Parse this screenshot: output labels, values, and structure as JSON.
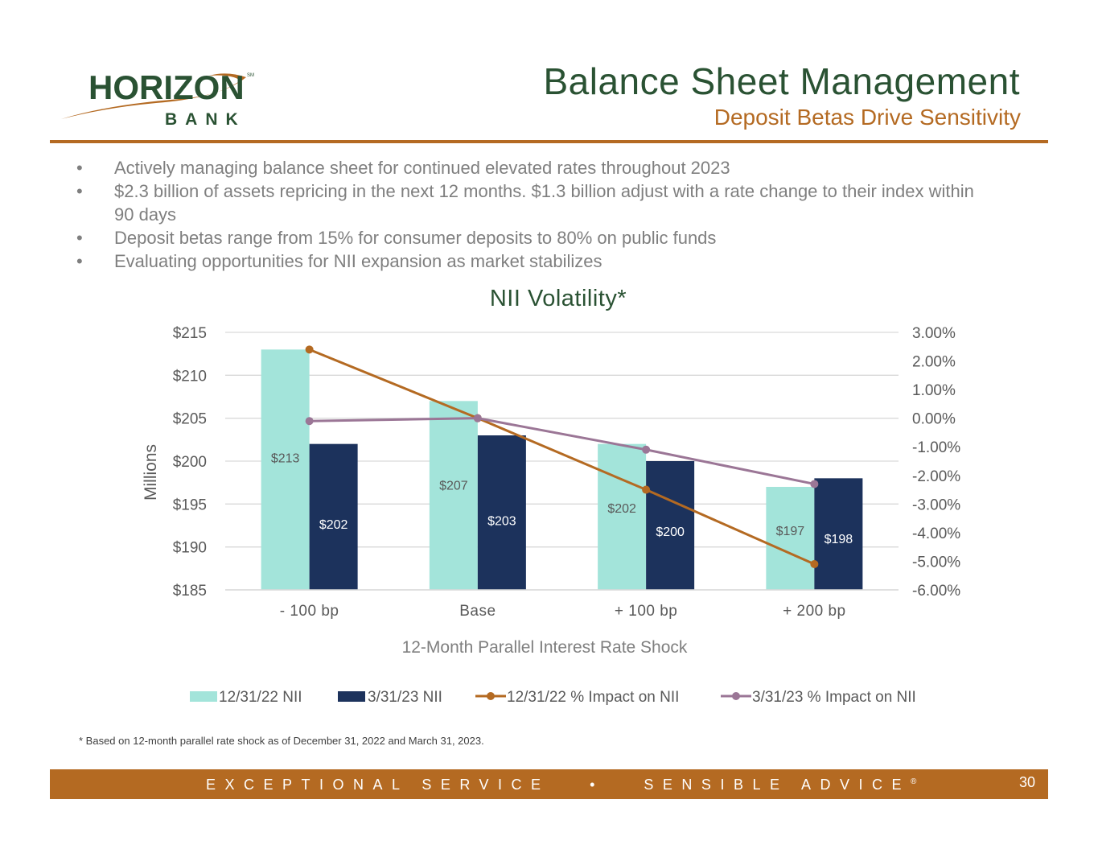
{
  "logo": {
    "name": "HORIZON",
    "sub": "BANK",
    "mark": "SM"
  },
  "header": {
    "title": "Balance Sheet Management",
    "subtitle": "Deposit Betas Drive Sensitivity"
  },
  "bullets": [
    "Actively managing balance sheet for continued elevated rates throughout 2023",
    "$2.3 billion of assets repricing in the next 12 months. $1.3 billion adjust with a rate change to their index within 90 days",
    "Deposit betas range from 15% for consumer deposits to 80% on public funds",
    "Evaluating opportunities for NII expansion as market stabilizes"
  ],
  "bullet_symbol": "•",
  "chart_data": {
    "type": "bar",
    "title": "NII Volatility*",
    "xlabel": "12-Month Parallel Interest Rate Shock",
    "ylabel": "Millions",
    "categories": [
      "- 100 bp",
      "Base",
      "+ 100 bp",
      "+ 200 bp"
    ],
    "ylim": [
      185,
      215
    ],
    "yticks": [
      185,
      190,
      195,
      200,
      205,
      210,
      215
    ],
    "ytick_labels": [
      "$185",
      "$190",
      "$195",
      "$200",
      "$205",
      "$210",
      "$215"
    ],
    "y2lim": [
      -6,
      3
    ],
    "y2ticks": [
      -6,
      -5,
      -4,
      -3,
      -2,
      -1,
      0,
      1,
      2,
      3
    ],
    "y2tick_labels": [
      "-6.00%",
      "-5.00%",
      "-4.00%",
      "-3.00%",
      "-2.00%",
      "-1.00%",
      "0.00%",
      "1.00%",
      "2.00%",
      "3.00%"
    ],
    "grid": true,
    "legend_position": "bottom",
    "series": [
      {
        "name": "12/31/22 NII",
        "kind": "bar",
        "axis": "left",
        "color": "#a3e4da",
        "label_color": "#595959",
        "values": [
          213,
          207,
          202,
          197
        ],
        "labels": [
          "$213",
          "$207",
          "$202",
          "$197"
        ]
      },
      {
        "name": "3/31/23 NII",
        "kind": "bar",
        "axis": "left",
        "color": "#1c325c",
        "label_color": "#ffffff",
        "values": [
          202,
          203,
          200,
          198
        ],
        "labels": [
          "$202",
          "$203",
          "$200",
          "$198"
        ]
      },
      {
        "name": "12/31/22 % Impact on NII",
        "kind": "line",
        "axis": "right",
        "color": "#b46a22",
        "values": [
          2.4,
          0.0,
          -2.5,
          -5.1
        ]
      },
      {
        "name": "3/31/23 % Impact on NII",
        "kind": "line",
        "axis": "right",
        "color": "#9b7696",
        "values": [
          -0.1,
          0.0,
          -1.1,
          -2.3
        ]
      }
    ]
  },
  "footnote": "* Based on 12-month parallel rate shock as of December 31, 2022 and March 31, 2023.",
  "footer": {
    "tagline_left": "EXCEPTIONAL SERVICE",
    "separator": "•",
    "tagline_right": "SENSIBLE ADVICE",
    "registered": "®",
    "page_number": "30"
  },
  "colors": {
    "brand_green": "#2a5233",
    "brand_orange": "#b46a22",
    "text_gray": "#7f7f7f"
  }
}
